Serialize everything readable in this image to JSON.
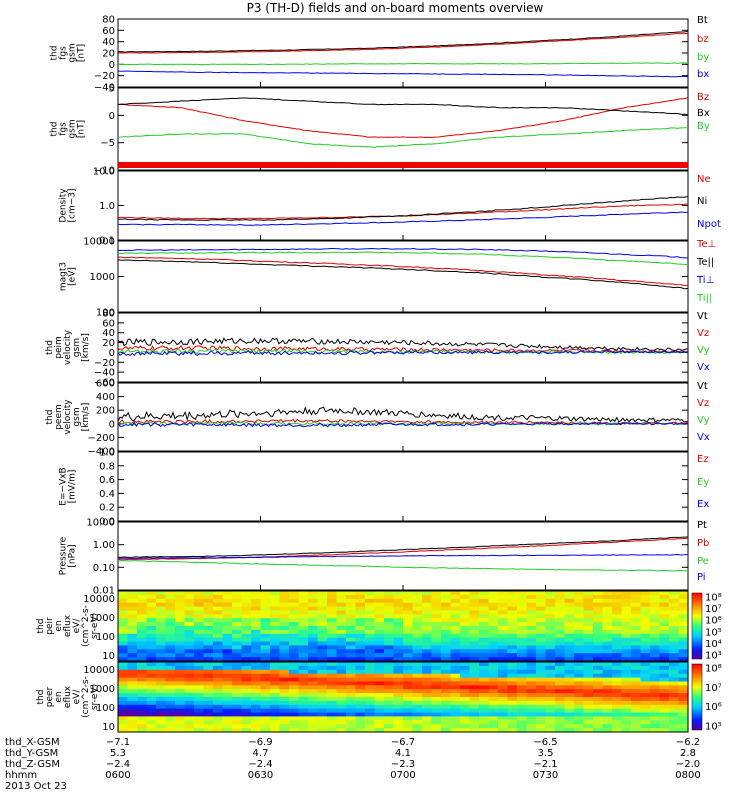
{
  "title": "P3 (TH-D) fields and on-board moments overview",
  "colors": {
    "black": "#000000",
    "red": "#e00000",
    "green": "#22cc22",
    "blue": "#0000ee"
  },
  "chart_data": [
    {
      "type": "line",
      "panel": "fgs_gsm",
      "ylabel": [
        "thd",
        "fgs",
        "gsm",
        "[nT]"
      ],
      "ylim": [
        -40,
        80
      ],
      "ticks": [
        "80",
        "60",
        "40",
        "20",
        "0",
        "−20",
        "−40"
      ],
      "series": [
        {
          "name": "Bt",
          "color": "black",
          "values": [
            22,
            23,
            25,
            28,
            33,
            40,
            48,
            58
          ]
        },
        {
          "name": "bz",
          "color": "red",
          "values": [
            20,
            21,
            23,
            26,
            31,
            38,
            46,
            55
          ]
        },
        {
          "name": "by",
          "color": "green",
          "values": [
            0,
            0,
            0,
            1,
            1,
            1,
            2,
            2
          ]
        },
        {
          "name": "bx",
          "color": "blue",
          "values": [
            -12,
            -14,
            -15,
            -16,
            -17,
            -18,
            -20,
            -22
          ]
        }
      ]
    },
    {
      "type": "line",
      "panel": "fgs_gsm_zoom",
      "ylabel": [
        "thd",
        "fgs",
        "gsm",
        "[nT]"
      ],
      "ylim": [
        -15,
        10
      ],
      "ticks": [
        "5",
        "0",
        "−5",
        "−10"
      ],
      "series": [
        {
          "name": "Bz",
          "color": "red",
          "values": [
            5,
            4,
            0,
            -3,
            -5,
            -5,
            -3,
            0,
            4,
            7
          ]
        },
        {
          "name": "Bx",
          "color": "black",
          "values": [
            5,
            6,
            7,
            6,
            5,
            5,
            4,
            4,
            3,
            2
          ]
        },
        {
          "name": "By",
          "color": "green",
          "values": [
            -5,
            -4,
            -4,
            -7,
            -8,
            -7,
            -5,
            -4,
            -3,
            -2
          ]
        }
      ]
    },
    {
      "type": "line",
      "panel": "density",
      "ylabel": [
        "Density",
        "[cm−3]"
      ],
      "scale": "log",
      "ylim": [
        0.1,
        10
      ],
      "ticks": [
        "10.0",
        "1.0",
        "0.1"
      ],
      "series": [
        {
          "name": "Ne",
          "color": "red",
          "values": [
            0.45,
            0.42,
            0.42,
            0.45,
            0.5,
            0.6,
            0.75,
            0.95,
            1.1
          ]
        },
        {
          "name": "Ni",
          "color": "black",
          "values": [
            0.4,
            0.38,
            0.38,
            0.42,
            0.5,
            0.65,
            0.9,
            1.3,
            1.8
          ]
        },
        {
          "name": "Npot",
          "color": "blue",
          "values": [
            0.28,
            0.28,
            0.27,
            0.3,
            0.33,
            0.38,
            0.45,
            0.55,
            0.65
          ]
        }
      ]
    },
    {
      "type": "line",
      "panel": "temperature",
      "ylabel": [
        "magt3",
        "[eV]"
      ],
      "scale": "log",
      "ylim": [
        100,
        10000
      ],
      "ticks": [
        "10000",
        "1000",
        "100"
      ],
      "series": [
        {
          "name": "Te⊥",
          "color": "red",
          "values": [
            3500,
            3200,
            2700,
            2300,
            1900,
            1500,
            1100,
            800,
            550
          ]
        },
        {
          "name": "Te||",
          "color": "black",
          "values": [
            2900,
            2600,
            2200,
            1900,
            1600,
            1300,
            950,
            700,
            450
          ]
        },
        {
          "name": "Ti⊥",
          "color": "blue",
          "values": [
            5500,
            5600,
            5800,
            6000,
            6000,
            5800,
            5200,
            4300,
            3400
          ]
        },
        {
          "name": "Ti||",
          "color": "green",
          "values": [
            4500,
            4600,
            4700,
            4800,
            4700,
            4300,
            3600,
            2800,
            2200
          ]
        }
      ]
    },
    {
      "type": "line",
      "panel": "peim_velocity",
      "ylabel": [
        "thd",
        "peim",
        "velocity",
        "gsm",
        "[km/s]"
      ],
      "ylim": [
        -60,
        80
      ],
      "ticks": [
        "80",
        "60",
        "40",
        "20",
        "0",
        "−20",
        "−40",
        "−60"
      ],
      "series": [
        {
          "name": "Vt",
          "color": "black",
          "values": [
            20,
            22,
            24,
            22,
            20,
            16,
            12,
            8,
            5
          ]
        },
        {
          "name": "Vz",
          "color": "red",
          "values": [
            8,
            9,
            8,
            7,
            6,
            5,
            4,
            3,
            2
          ]
        },
        {
          "name": "Vy",
          "color": "green",
          "values": [
            2,
            3,
            2,
            2,
            1,
            1,
            1,
            0,
            0
          ]
        },
        {
          "name": "Vx",
          "color": "blue",
          "values": [
            -2,
            -2,
            -1,
            -1,
            0,
            0,
            0,
            1,
            1
          ]
        }
      ]
    },
    {
      "type": "line",
      "panel": "peem_velocity",
      "ylabel": [
        "thd",
        "peem",
        "velocity",
        "gsm",
        "[km/s]"
      ],
      "ylim": [
        -400,
        600
      ],
      "ticks": [
        "600",
        "400",
        "200",
        "0",
        "−200",
        "−400"
      ],
      "series": [
        {
          "name": "Vt",
          "color": "black",
          "values": [
            100,
            120,
            160,
            200,
            150,
            100,
            80,
            60,
            50
          ]
        },
        {
          "name": "Vz",
          "color": "red",
          "values": [
            30,
            30,
            40,
            40,
            30,
            20,
            20,
            10,
            10
          ]
        },
        {
          "name": "Vy",
          "color": "green",
          "values": [
            0,
            0,
            0,
            0,
            0,
            0,
            0,
            0,
            0
          ]
        },
        {
          "name": "Vx",
          "color": "blue",
          "values": [
            -10,
            -10,
            -20,
            -20,
            -10,
            -10,
            0,
            0,
            0
          ]
        }
      ]
    },
    {
      "type": "line",
      "panel": "efield",
      "ylabel": [
        "E=−VxB",
        "[mV/m]"
      ],
      "ylim": [
        0,
        1
      ],
      "ticks": [
        "1.0",
        "0.8",
        "0.6",
        "0.4",
        "0.2",
        "0.0"
      ],
      "series": [
        {
          "name": "Ez",
          "color": "red",
          "values": []
        },
        {
          "name": "Ey",
          "color": "green",
          "values": []
        },
        {
          "name": "Ex",
          "color": "blue",
          "values": []
        }
      ]
    },
    {
      "type": "line",
      "panel": "pressure",
      "ylabel": [
        "Pressure",
        "[nPa]"
      ],
      "scale": "log",
      "ylim": [
        0.01,
        10
      ],
      "ticks": [
        "10.00",
        "1.00",
        "0.10",
        "0.01"
      ],
      "series": [
        {
          "name": "Pt",
          "color": "black",
          "values": [
            0.28,
            0.3,
            0.35,
            0.45,
            0.6,
            0.8,
            1.1,
            1.5,
            2.2
          ]
        },
        {
          "name": "Pb",
          "color": "red",
          "values": [
            0.22,
            0.24,
            0.28,
            0.36,
            0.48,
            0.65,
            0.9,
            1.3,
            1.9
          ]
        },
        {
          "name": "Pe",
          "color": "green",
          "values": [
            0.2,
            0.17,
            0.14,
            0.12,
            0.1,
            0.09,
            0.08,
            0.075,
            0.07
          ]
        },
        {
          "name": "Pi",
          "color": "blue",
          "values": [
            0.25,
            0.26,
            0.28,
            0.3,
            0.32,
            0.33,
            0.34,
            0.35,
            0.36
          ]
        }
      ]
    },
    {
      "type": "heatmap",
      "panel": "peir_spectrogram",
      "ylabel": [
        "thd",
        "peir",
        "en",
        "eflux",
        "eV/",
        "(cm^2-s-",
        "sr-eV)"
      ],
      "scale": "log",
      "ylim": [
        5,
        25000
      ],
      "ticks": [
        "10000",
        "1000",
        "100",
        "10"
      ],
      "colorbar": {
        "ticks": [
          "10⁸",
          "10⁷",
          "10⁶",
          "10⁵",
          "10⁴",
          "10³"
        ]
      }
    },
    {
      "type": "heatmap",
      "panel": "peer_spectrogram",
      "ylabel": [
        "thd",
        "peer",
        "en",
        "eflux",
        "eV/",
        "(cm^2-s-",
        "sr-eV)"
      ],
      "scale": "log",
      "ylim": [
        5,
        25000
      ],
      "ticks": [
        "10000",
        "1000",
        "100",
        "10"
      ],
      "colorbar": {
        "ticks": [
          "10⁸",
          "10⁷",
          "10⁶",
          "10⁵"
        ]
      }
    }
  ],
  "xaxis": {
    "rows": [
      {
        "label": "thd_X-GSM",
        "values": [
          "−7.1",
          "−6.9",
          "−6.7",
          "−6.5",
          "−6.2"
        ]
      },
      {
        "label": "thd_Y-GSM",
        "values": [
          "5.3",
          "4.7",
          "4.1",
          "3.5",
          "2.8"
        ]
      },
      {
        "label": "thd_Z-GSM",
        "values": [
          "−2.4",
          "−2.4",
          "−2.3",
          "−2.1",
          "−2.0"
        ]
      },
      {
        "label": "hhmm",
        "values": [
          "0600",
          "0630",
          "0700",
          "0730",
          "0800"
        ]
      }
    ],
    "date": "2013 Oct 23"
  }
}
